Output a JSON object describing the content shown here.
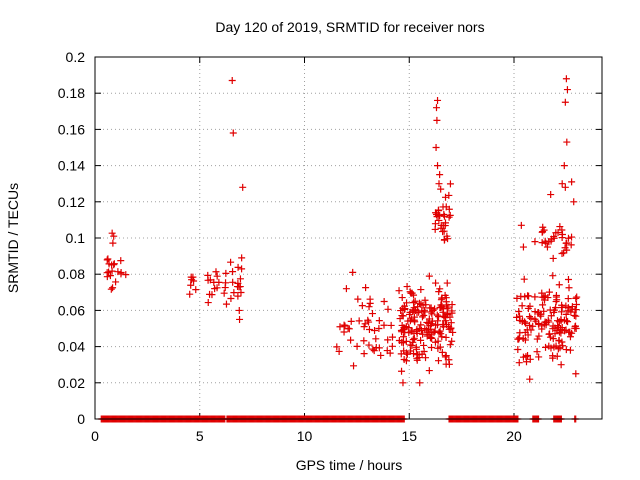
{
  "chart_data": {
    "type": "scatter",
    "title": "Day 120 of 2019, SRMTID for receiver nors",
    "xlabel": "GPS time / hours",
    "ylabel": "SRMTID / TECUs",
    "xlim": [
      0,
      24.2
    ],
    "ylim": [
      0,
      0.2
    ],
    "xticks": [
      0,
      5,
      10,
      15,
      20
    ],
    "xtick_labels": [
      "0",
      "5",
      "10",
      "15",
      "20"
    ],
    "yticks": [
      0,
      0.02,
      0.04,
      0.06,
      0.08,
      0.1,
      0.12,
      0.14,
      0.16,
      0.18,
      0.2
    ],
    "ytick_labels": [
      "0",
      "0.02",
      "0.04",
      "0.06",
      "0.08",
      "0.1",
      "0.12",
      "0.14",
      "0.16",
      "0.18",
      "0.2"
    ],
    "grid": true,
    "legend": "none",
    "marker": "+",
    "color": "#e00000",
    "zero_baseline_segments": [
      [
        0.3,
        6.2
      ],
      [
        6.3,
        14.8
      ],
      [
        16.9,
        20.2
      ],
      [
        20.9,
        21.2
      ],
      [
        21.9,
        22.3
      ],
      [
        22.9,
        22.95
      ]
    ],
    "clusters": [
      {
        "name": "hour-1",
        "x_range": [
          0.55,
          1.5
        ],
        "y_range": [
          0.06,
          0.11
        ],
        "count": 22,
        "seed": 11
      },
      {
        "name": "hour-4-5",
        "x_range": [
          4.4,
          4.9
        ],
        "y_range": [
          0.065,
          0.088
        ],
        "count": 7,
        "seed": 12
      },
      {
        "name": "hour-5.5-7",
        "x_range": [
          5.3,
          7.0
        ],
        "y_range": [
          0.053,
          0.096
        ],
        "count": 32,
        "seed": 13
      },
      {
        "name": "hour-12-14",
        "x_range": [
          11.5,
          14.4
        ],
        "y_range": [
          0.02,
          0.082
        ],
        "count": 45,
        "seed": 14
      },
      {
        "name": "hour-14.5-17",
        "x_range": [
          14.5,
          17.1
        ],
        "y_range": [
          0.02,
          0.085
        ],
        "count": 190,
        "seed": 15
      },
      {
        "name": "hour-16.2-17 upper",
        "x_range": [
          16.2,
          17.0
        ],
        "y_range": [
          0.086,
          0.136
        ],
        "count": 28,
        "seed": 16
      },
      {
        "name": "hour-20-23",
        "x_range": [
          20.1,
          23.0
        ],
        "y_range": [
          0.022,
          0.086
        ],
        "count": 150,
        "seed": 17
      },
      {
        "name": "hour-21.5-23 upper",
        "x_range": [
          21.3,
          22.8
        ],
        "y_range": [
          0.086,
          0.112
        ],
        "count": 30,
        "seed": 18
      }
    ],
    "points": [
      {
        "x": 6.55,
        "y": 0.187
      },
      {
        "x": 6.6,
        "y": 0.158
      },
      {
        "x": 7.05,
        "y": 0.128
      },
      {
        "x": 7.0,
        "y": 0.089
      },
      {
        "x": 6.9,
        "y": 0.055
      },
      {
        "x": 16.35,
        "y": 0.176
      },
      {
        "x": 16.3,
        "y": 0.172
      },
      {
        "x": 16.32,
        "y": 0.165
      },
      {
        "x": 16.28,
        "y": 0.15
      },
      {
        "x": 16.35,
        "y": 0.14
      },
      {
        "x": 16.45,
        "y": 0.135
      },
      {
        "x": 16.42,
        "y": 0.13
      },
      {
        "x": 16.5,
        "y": 0.127
      },
      {
        "x": 16.3,
        "y": 0.113
      },
      {
        "x": 16.65,
        "y": 0.113
      },
      {
        "x": 22.5,
        "y": 0.188
      },
      {
        "x": 22.55,
        "y": 0.182
      },
      {
        "x": 22.45,
        "y": 0.175
      },
      {
        "x": 22.52,
        "y": 0.153
      },
      {
        "x": 22.4,
        "y": 0.14
      },
      {
        "x": 22.3,
        "y": 0.13
      },
      {
        "x": 22.45,
        "y": 0.128
      },
      {
        "x": 22.75,
        "y": 0.131
      },
      {
        "x": 22.85,
        "y": 0.12
      },
      {
        "x": 21.75,
        "y": 0.124
      },
      {
        "x": 20.35,
        "y": 0.107
      },
      {
        "x": 20.45,
        "y": 0.095
      },
      {
        "x": 21.0,
        "y": 0.098
      },
      {
        "x": 12.3,
        "y": 0.081
      },
      {
        "x": 12.0,
        "y": 0.072
      },
      {
        "x": 13.55,
        "y": 0.05
      },
      {
        "x": 14.7,
        "y": 0.02
      },
      {
        "x": 15.5,
        "y": 0.02
      },
      {
        "x": 20.75,
        "y": 0.022
      },
      {
        "x": 22.25,
        "y": 0.03
      },
      {
        "x": 22.95,
        "y": 0.025
      }
    ]
  }
}
